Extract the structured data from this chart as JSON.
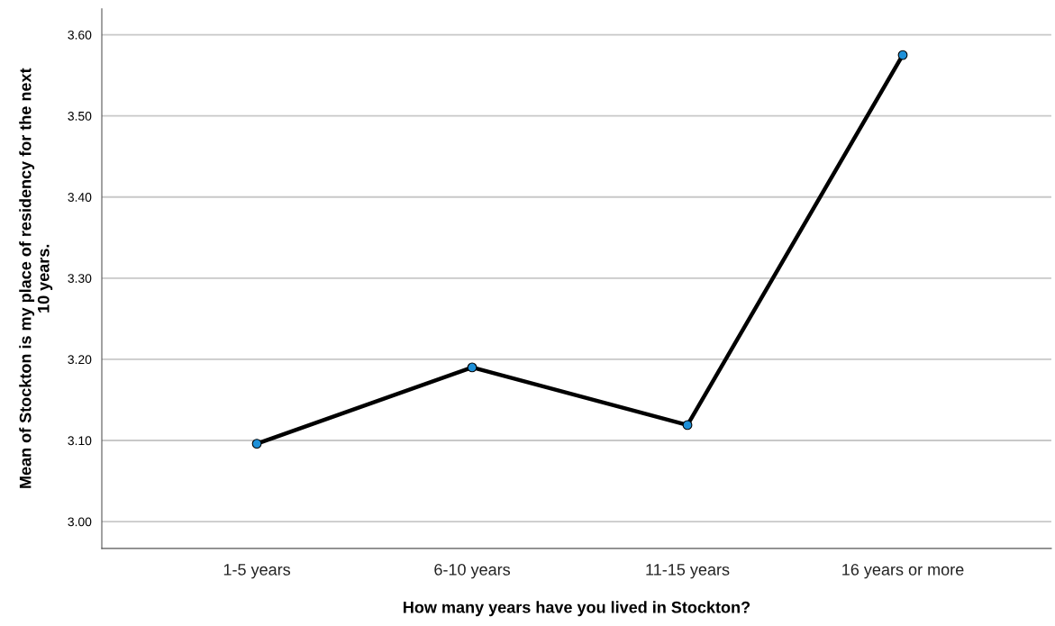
{
  "chart_data": {
    "type": "line",
    "xlabel": "How many years have you lived in Stockton?",
    "ylabel": "Mean of Stockton is my place of residency for the next\n10 years.",
    "categories": [
      "1-5 years",
      "6-10 years",
      "11-15 years",
      "16 years or more"
    ],
    "series": [
      {
        "color": "#000000",
        "values": [
          3.096,
          3.19,
          3.119,
          3.575
        ]
      }
    ],
    "marker": "circle",
    "line_style": "solid",
    "ylim": [
      2.967,
      3.632
    ],
    "yticks": [
      {
        "value": 3.0,
        "label": "3.00"
      },
      {
        "value": 3.1,
        "label": "3.10"
      },
      {
        "value": 3.2,
        "label": "3.20"
      },
      {
        "value": 3.3,
        "label": "3.30"
      },
      {
        "value": 3.4,
        "label": "3.40"
      },
      {
        "value": 3.5,
        "label": "3.50"
      },
      {
        "value": 3.6,
        "label": "3.60"
      }
    ],
    "grid": "y",
    "legend": false
  }
}
